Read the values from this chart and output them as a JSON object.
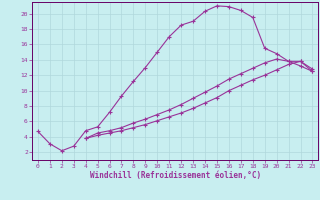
{
  "xlabel": "Windchill (Refroidissement éolien,°C)",
  "bg_color": "#c8eef0",
  "grid_color": "#b0d8dc",
  "line_color": "#993399",
  "spine_color": "#660066",
  "xlim": [
    -0.5,
    23.5
  ],
  "ylim": [
    1,
    21.5
  ],
  "yticks": [
    2,
    4,
    6,
    8,
    10,
    12,
    14,
    16,
    18,
    20
  ],
  "xticks": [
    0,
    1,
    2,
    3,
    4,
    5,
    6,
    7,
    8,
    9,
    10,
    11,
    12,
    13,
    14,
    15,
    16,
    17,
    18,
    19,
    20,
    21,
    22,
    23
  ],
  "line1_x": [
    0,
    1,
    2,
    3,
    4,
    5,
    6,
    7,
    8,
    9,
    10,
    11,
    12,
    13,
    14,
    15,
    16,
    17,
    18,
    19,
    20,
    21,
    22,
    23
  ],
  "line1_y": [
    4.7,
    3.1,
    2.2,
    2.8,
    4.8,
    5.3,
    7.2,
    9.3,
    11.2,
    13.0,
    15.0,
    17.0,
    18.5,
    19.0,
    20.3,
    21.0,
    20.9,
    20.4,
    19.5,
    15.5,
    14.8,
    13.8,
    13.8,
    12.8
  ],
  "line2_x": [
    4,
    5,
    6,
    7,
    8,
    9,
    10,
    11,
    12,
    13,
    14,
    15,
    16,
    17,
    18,
    19,
    20,
    21,
    22,
    23
  ],
  "line2_y": [
    3.8,
    4.5,
    4.8,
    5.2,
    5.8,
    6.3,
    6.9,
    7.5,
    8.2,
    9.0,
    9.8,
    10.6,
    11.5,
    12.2,
    12.9,
    13.6,
    14.1,
    13.8,
    13.2,
    12.5
  ],
  "line3_x": [
    4,
    5,
    6,
    7,
    8,
    9,
    10,
    11,
    12,
    13,
    14,
    15,
    16,
    17,
    18,
    19,
    20,
    21,
    22,
    23
  ],
  "line3_y": [
    3.8,
    4.2,
    4.5,
    4.8,
    5.2,
    5.6,
    6.1,
    6.6,
    7.1,
    7.7,
    8.4,
    9.1,
    10.0,
    10.7,
    11.4,
    12.0,
    12.7,
    13.4,
    13.8,
    12.5
  ]
}
